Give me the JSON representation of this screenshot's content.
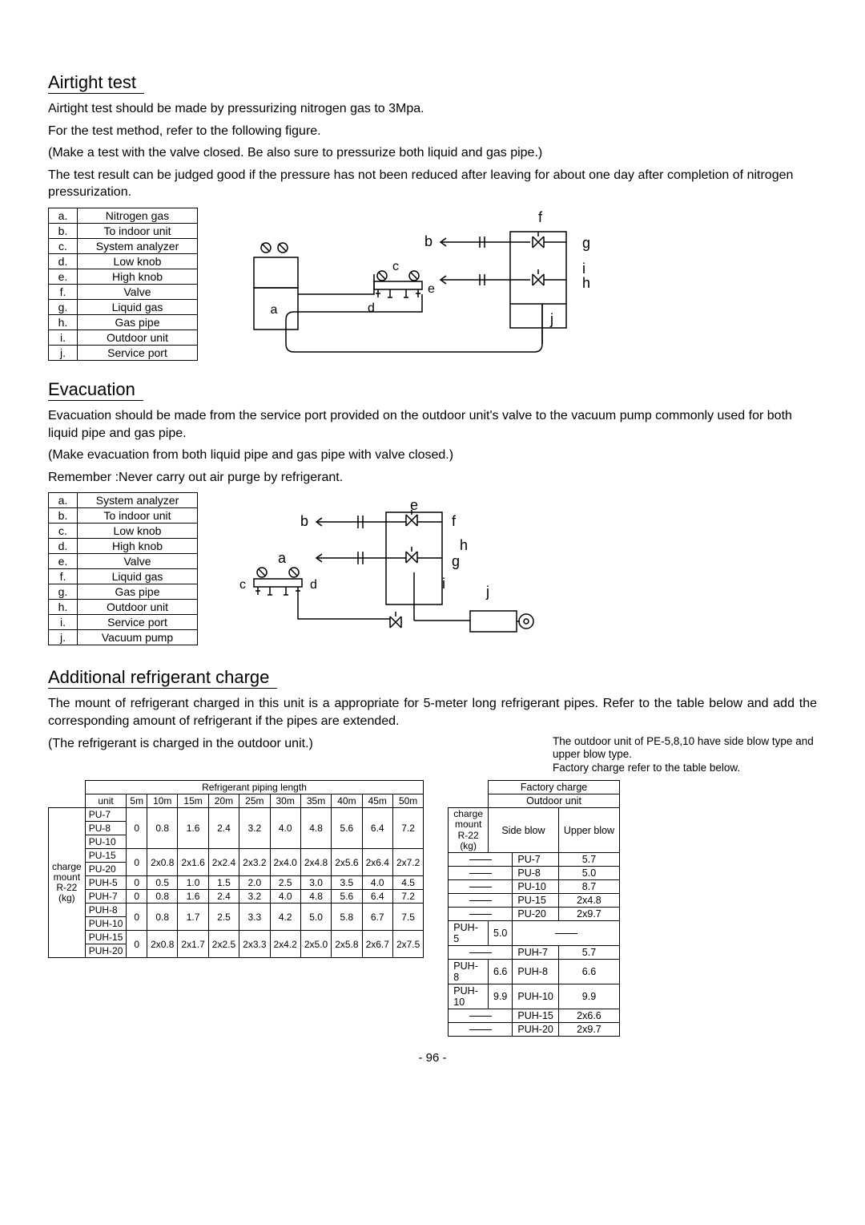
{
  "airtight": {
    "title": "Airtight test",
    "p1": "Airtight test should be made by pressurizing nitrogen gas to 3Mpa.",
    "p2": "For the test method, refer to the following figure.",
    "p3": "(Make a test with the valve closed. Be also sure to pressurize both liquid and gas pipe.)",
    "p4": "The test result can be judged good if the pressure has not been reduced after leaving for about one day after completion of nitrogen pressurization.",
    "legend": [
      [
        "a.",
        "Nitrogen gas"
      ],
      [
        "b.",
        "To indoor unit"
      ],
      [
        "c.",
        "System analyzer"
      ],
      [
        "d.",
        "Low knob"
      ],
      [
        "e.",
        "High knob"
      ],
      [
        "f.",
        "Valve"
      ],
      [
        "g.",
        "Liquid gas"
      ],
      [
        "h.",
        "Gas pipe"
      ],
      [
        "i.",
        "Outdoor unit"
      ],
      [
        "j.",
        "Service port"
      ]
    ]
  },
  "evacuation": {
    "title": "Evacuation",
    "p1": "Evacuation should be made from the service port provided on the outdoor unit's valve to the vacuum pump commonly used for both liquid pipe and gas pipe.",
    "p2": "(Make evacuation from both liquid pipe and gas pipe with valve closed.)",
    "p3": "Remember :Never carry out air purge by refrigerant.",
    "legend": [
      [
        "a.",
        "System analyzer"
      ],
      [
        "b.",
        "To indoor unit"
      ],
      [
        "c.",
        "Low knob"
      ],
      [
        "d.",
        "High knob"
      ],
      [
        "e.",
        "Valve"
      ],
      [
        "f.",
        "Liquid gas"
      ],
      [
        "g.",
        "Gas pipe"
      ],
      [
        "h.",
        "Outdoor unit"
      ],
      [
        "i.",
        "Service port"
      ],
      [
        "j.",
        "Vacuum pump"
      ]
    ]
  },
  "charge": {
    "title": "Additional refrigerant charge",
    "p1": "The mount of refrigerant charged in this unit is a appropriate for 5-meter long refrigerant pipes. Refer to the table below and add the corresponding amount of refrigerant if the pipes are extended.",
    "p2": "(The refrigerant is charged in the outdoor unit.)",
    "note1": "The outdoor unit of PE-5,8,10 have side blow type and upper blow type.",
    "note2": "Factory charge refer to the table below.",
    "table": {
      "header": "Refrigerant piping length",
      "rowlabel": "charge mount R-22 (kg)",
      "cols": [
        "unit",
        "5m",
        "10m",
        "15m",
        "20m",
        "25m",
        "30m",
        "35m",
        "40m",
        "45m",
        "50m"
      ],
      "rows": [
        [
          "PU-7",
          "0",
          "0.8",
          "1.6",
          "2.4",
          "3.2",
          "4.0",
          "4.8",
          "5.6",
          "6.4",
          "7.2",
          "",
          "",
          ""
        ],
        [
          "PU-8"
        ],
        [
          "PU-10"
        ],
        [
          "PU-15",
          "0",
          "2x0.8",
          "2x1.6",
          "2x2.4",
          "2x3.2",
          "2x4.0",
          "2x4.8",
          "2x5.6",
          "2x6.4",
          "2x7.2"
        ],
        [
          "PU-20"
        ],
        [
          "PUH-5",
          "0",
          "0.5",
          "1.0",
          "1.5",
          "2.0",
          "2.5",
          "3.0",
          "3.5",
          "4.0",
          "4.5"
        ],
        [
          "PUH-7",
          "0",
          "0.8",
          "1.6",
          "2.4",
          "3.2",
          "4.0",
          "4.8",
          "5.6",
          "6.4",
          "7.2"
        ],
        [
          "PUH-8",
          "0",
          "0.8",
          "1.7",
          "2.5",
          "3.3",
          "4.2",
          "5.0",
          "5.8",
          "6.7",
          "7.5"
        ],
        [
          "PUH-10"
        ],
        [
          "PUH-15",
          "0",
          "2x0.8",
          "2x1.7",
          "2x2.5",
          "2x3.3",
          "2x4.2",
          "2x5.0",
          "2x5.8",
          "2x6.7",
          "2x7.5"
        ],
        [
          "PUH-20"
        ]
      ]
    },
    "factory": {
      "header": "Factory charge",
      "sub": "Outdoor unit",
      "side": "Side blow",
      "upper": "Upper blow",
      "rowlabel": "charge mount R-22 (kg)",
      "rows": [
        [
          "—",
          "PU-7",
          "5.7"
        ],
        [
          "—",
          "PU-8",
          "5.0"
        ],
        [
          "—",
          "PU-10",
          "8.7"
        ],
        [
          "—",
          "PU-15",
          "2x4.8"
        ],
        [
          "—",
          "PU-20",
          "2x9.7"
        ],
        [
          "PUH-5",
          "5.0",
          "—",
          ""
        ],
        [
          "—",
          "PUH-7",
          "5.7"
        ],
        [
          "PUH-8",
          "6.6",
          "PUH-8",
          "6.6"
        ],
        [
          "PUH-10",
          "9.9",
          "PUH-10",
          "9.9"
        ],
        [
          "—",
          "PUH-15",
          "2x6.6"
        ],
        [
          "—",
          "PUH-20",
          "2x9.7"
        ]
      ]
    }
  },
  "page": "- 96 -",
  "colors": {
    "line": "#000",
    "bg": "#fff"
  }
}
